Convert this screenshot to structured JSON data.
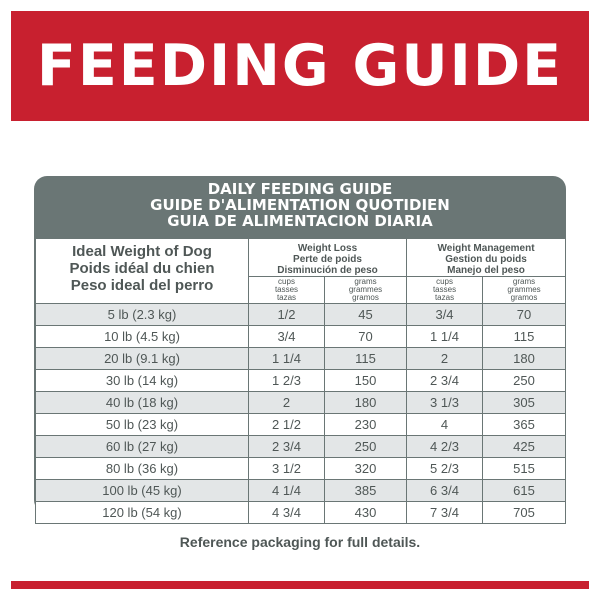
{
  "banner": {
    "title": "FEEDING GUIDE"
  },
  "card": {
    "heading_lines": [
      "DAILY FEEDING GUIDE",
      "GUIDE D'ALIMENTATION QUOTIDIEN",
      "GUIA DE ALIMENTACION DIARIA"
    ]
  },
  "table": {
    "weight_header_lines": [
      "Ideal Weight of Dog",
      "Poids idéal du chien",
      "Peso ideal del perro"
    ],
    "groups": [
      {
        "lines": [
          "Weight Loss",
          "Perte de poids",
          "Disminución de peso"
        ]
      },
      {
        "lines": [
          "Weight Management",
          "Gestion du poids",
          "Manejo del peso"
        ]
      }
    ],
    "unit_cups_lines": [
      "cups",
      "tasses",
      "tazas"
    ],
    "unit_grams_lines": [
      "grams",
      "grammes",
      "gramos"
    ],
    "rows": [
      {
        "weight": "5 lb (2.3 kg)",
        "loss_cups": "1/2",
        "loss_grams": "45",
        "mgmt_cups": "3/4",
        "mgmt_grams": "70"
      },
      {
        "weight": "10 lb (4.5 kg)",
        "loss_cups": "3/4",
        "loss_grams": "70",
        "mgmt_cups": "1 1/4",
        "mgmt_grams": "115"
      },
      {
        "weight": "20 lb (9.1 kg)",
        "loss_cups": "1 1/4",
        "loss_grams": "115",
        "mgmt_cups": "2",
        "mgmt_grams": "180"
      },
      {
        "weight": "30 lb (14 kg)",
        "loss_cups": "1 2/3",
        "loss_grams": "150",
        "mgmt_cups": "2 3/4",
        "mgmt_grams": "250"
      },
      {
        "weight": "40 lb (18 kg)",
        "loss_cups": "2",
        "loss_grams": "180",
        "mgmt_cups": "3 1/3",
        "mgmt_grams": "305"
      },
      {
        "weight": "50 lb (23 kg)",
        "loss_cups": "2 1/2",
        "loss_grams": "230",
        "mgmt_cups": "4",
        "mgmt_grams": "365"
      },
      {
        "weight": "60 lb (27 kg)",
        "loss_cups": "2 3/4",
        "loss_grams": "250",
        "mgmt_cups": "4 2/3",
        "mgmt_grams": "425"
      },
      {
        "weight": "80 lb (36 kg)",
        "loss_cups": "3 1/2",
        "loss_grams": "320",
        "mgmt_cups": "5 2/3",
        "mgmt_grams": "515"
      },
      {
        "weight": "100 lb (45 kg)",
        "loss_cups": "4 1/4",
        "loss_grams": "385",
        "mgmt_cups": "6 3/4",
        "mgmt_grams": "615"
      },
      {
        "weight": "120 lb (54 kg)",
        "loss_cups": "4 3/4",
        "loss_grams": "430",
        "mgmt_cups": "7 3/4",
        "mgmt_grams": "705"
      }
    ]
  },
  "footer": {
    "note": "Reference packaging for full details."
  },
  "colors": {
    "brand_red": "#c8202f",
    "slate": "#6a7675",
    "row_tint": "#e3e6e7",
    "text": "#4f5756"
  }
}
